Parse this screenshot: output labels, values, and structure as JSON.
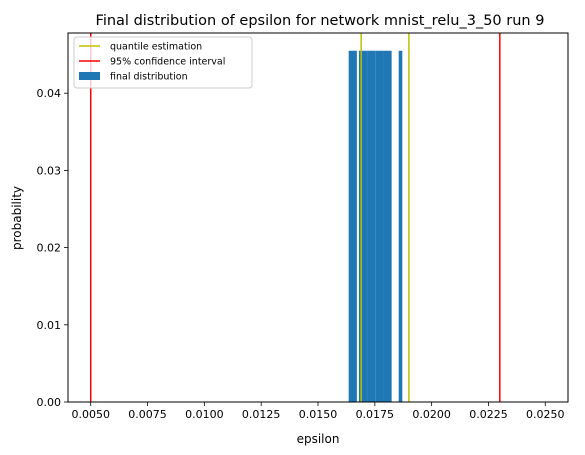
{
  "chart_data": {
    "type": "bar",
    "title": "Final distribution of epsilon for network mnist_relu_3_50 run 9",
    "xlabel": "epsilon",
    "ylabel": "probability",
    "xlim": [
      0.004,
      0.026
    ],
    "ylim": [
      0.0,
      0.0478
    ],
    "x_ticks": [
      "0.0050",
      "0.0075",
      "0.0100",
      "0.0125",
      "0.0150",
      "0.0175",
      "0.0200",
      "0.0225",
      "0.0250"
    ],
    "y_ticks": [
      "0.00",
      "0.01",
      "0.02",
      "0.03",
      "0.04"
    ],
    "bar_color": "#1f77b4",
    "bars": [
      {
        "x": 0.01635,
        "width": 0.00036,
        "value": 0.0455
      },
      {
        "x": 0.0168,
        "width": 0.00036,
        "value": 0.0455
      },
      {
        "x": 0.01716,
        "width": 0.00036,
        "value": 0.0455
      },
      {
        "x": 0.01752,
        "width": 0.00036,
        "value": 0.0455
      },
      {
        "x": 0.01788,
        "width": 0.00036,
        "value": 0.0455
      },
      {
        "x": 0.01855,
        "width": 0.00016,
        "value": 0.0455
      }
    ],
    "lines": [
      {
        "name": "quantile estimation",
        "color": "#bfbf00",
        "values": [
          0.0169,
          0.019
        ]
      },
      {
        "name": "95% confidence interval",
        "color": "#ff0000",
        "values": [
          0.005,
          0.023
        ]
      }
    ],
    "legend": {
      "placement": "top-left",
      "entries": [
        {
          "label": "quantile estimation",
          "kind": "line",
          "color": "#bfbf00"
        },
        {
          "label": "95% confidence interval",
          "kind": "line",
          "color": "#ff0000"
        },
        {
          "label": "final distribution",
          "kind": "patch",
          "color": "#1f77b4"
        }
      ]
    },
    "grid": false
  }
}
